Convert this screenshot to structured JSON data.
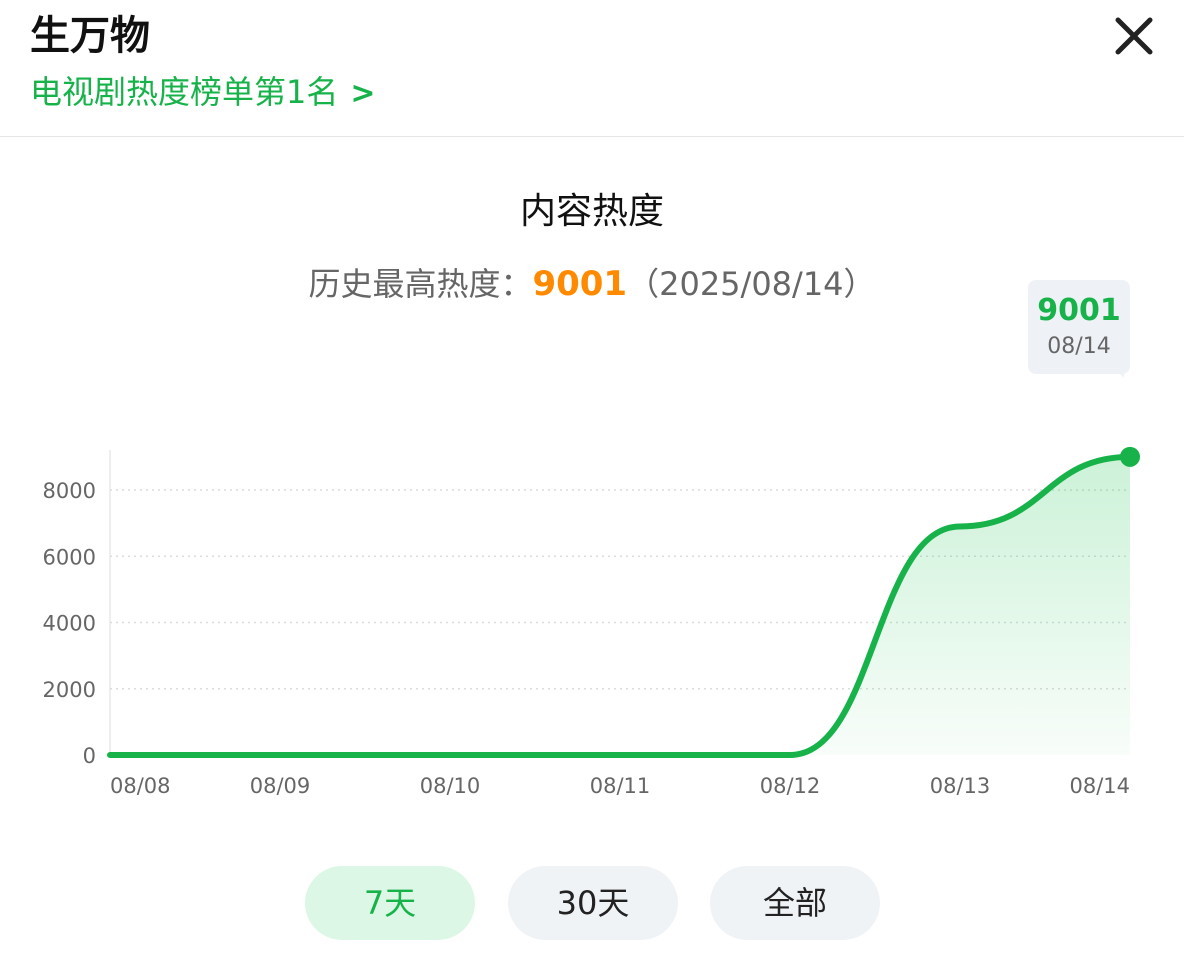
{
  "header": {
    "title": "生万物",
    "rank_link": "电视剧热度榜单第1名",
    "close_icon": "close-icon",
    "chevron_icon": "chevron-right-icon"
  },
  "section": {
    "title": "内容热度",
    "peak_label": "历史最高热度：",
    "peak_value": "9001",
    "peak_date": "（2025/08/14）"
  },
  "tooltip": {
    "value": "9001",
    "date": "08/14"
  },
  "range_tabs": [
    {
      "label": "7天",
      "selected": true
    },
    {
      "label": "30天",
      "selected": false
    },
    {
      "label": "全部",
      "selected": false
    }
  ],
  "colors": {
    "accent": "#17b34a",
    "peak": "#ff8a00"
  },
  "chart_data": {
    "type": "area",
    "x": [
      "08/08",
      "08/09",
      "08/10",
      "08/11",
      "08/12",
      "08/13",
      "08/14"
    ],
    "series": [
      {
        "values": [
          0,
          0,
          0,
          0,
          0,
          6900,
          9001
        ]
      }
    ],
    "yticks": [
      0,
      2000,
      4000,
      6000,
      8000
    ],
    "ylim": [
      0,
      9100
    ],
    "grid": true,
    "highlight": {
      "x": "08/14",
      "value": 9001
    }
  }
}
